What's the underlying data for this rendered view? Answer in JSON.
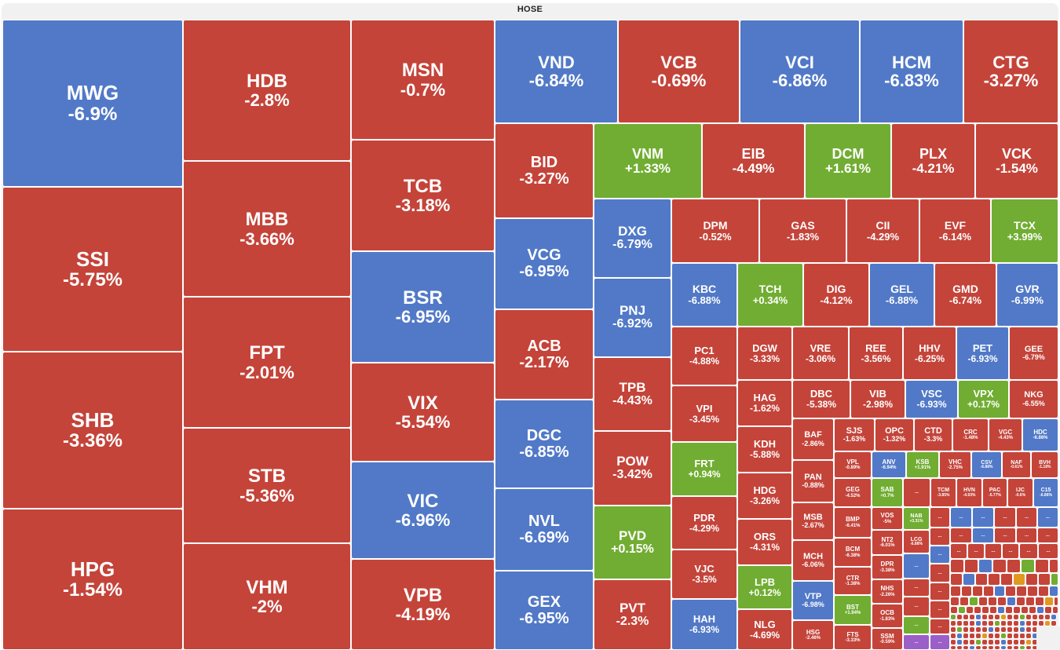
{
  "title": "HOSE",
  "colors": {
    "down": "#c4443a",
    "floor": "#5179c7",
    "up": "#71ad32",
    "ref": "#e09a20",
    "ceiling": "#9b5fc8"
  },
  "chart_data": {
    "type": "treemap",
    "title": "HOSE",
    "metric": "price change %",
    "cells": [
      {
        "ticker": "MWG",
        "change": "-6.9%",
        "status": "floor"
      },
      {
        "ticker": "SSI",
        "change": "-5.75%",
        "status": "down"
      },
      {
        "ticker": "SHB",
        "change": "-3.36%",
        "status": "down"
      },
      {
        "ticker": "HPG",
        "change": "-1.54%",
        "status": "down"
      },
      {
        "ticker": "HDB",
        "change": "-2.8%",
        "status": "down"
      },
      {
        "ticker": "MBB",
        "change": "-3.66%",
        "status": "down"
      },
      {
        "ticker": "FPT",
        "change": "-2.01%",
        "status": "down"
      },
      {
        "ticker": "STB",
        "change": "-5.36%",
        "status": "down"
      },
      {
        "ticker": "VHM",
        "change": "-2%",
        "status": "down"
      },
      {
        "ticker": "MSN",
        "change": "-0.7%",
        "status": "down"
      },
      {
        "ticker": "TCB",
        "change": "-3.18%",
        "status": "down"
      },
      {
        "ticker": "BSR",
        "change": "-6.95%",
        "status": "floor"
      },
      {
        "ticker": "VIX",
        "change": "-5.54%",
        "status": "down"
      },
      {
        "ticker": "VIC",
        "change": "-6.96%",
        "status": "floor"
      },
      {
        "ticker": "VPB",
        "change": "-4.19%",
        "status": "down"
      },
      {
        "ticker": "VND",
        "change": "-6.84%",
        "status": "floor"
      },
      {
        "ticker": "VCB",
        "change": "-0.69%",
        "status": "down"
      },
      {
        "ticker": "VCI",
        "change": "-6.86%",
        "status": "floor"
      },
      {
        "ticker": "HCM",
        "change": "-6.83%",
        "status": "floor"
      },
      {
        "ticker": "CTG",
        "change": "-3.27%",
        "status": "down"
      },
      {
        "ticker": "BID",
        "change": "-3.27%",
        "status": "down"
      },
      {
        "ticker": "VCG",
        "change": "-6.95%",
        "status": "floor"
      },
      {
        "ticker": "ACB",
        "change": "-2.17%",
        "status": "down"
      },
      {
        "ticker": "DGC",
        "change": "-6.85%",
        "status": "floor"
      },
      {
        "ticker": "NVL",
        "change": "-6.69%",
        "status": "floor"
      },
      {
        "ticker": "GEX",
        "change": "-6.95%",
        "status": "floor"
      },
      {
        "ticker": "VNM",
        "change": "+1.33%",
        "status": "up"
      },
      {
        "ticker": "EIB",
        "change": "-4.49%",
        "status": "down"
      },
      {
        "ticker": "DCM",
        "change": "+1.61%",
        "status": "up"
      },
      {
        "ticker": "PLX",
        "change": "-4.21%",
        "status": "down"
      },
      {
        "ticker": "VCK",
        "change": "-1.54%",
        "status": "down"
      },
      {
        "ticker": "DXG",
        "change": "-6.79%",
        "status": "floor"
      },
      {
        "ticker": "PNJ",
        "change": "-6.92%",
        "status": "floor"
      },
      {
        "ticker": "TPB",
        "change": "-4.43%",
        "status": "down"
      },
      {
        "ticker": "POW",
        "change": "-3.42%",
        "status": "down"
      },
      {
        "ticker": "PVD",
        "change": "+0.15%",
        "status": "up"
      },
      {
        "ticker": "PVT",
        "change": "-2.3%",
        "status": "down"
      },
      {
        "ticker": "DPM",
        "change": "-0.52%",
        "status": "down"
      },
      {
        "ticker": "GAS",
        "change": "-1.83%",
        "status": "down"
      },
      {
        "ticker": "CII",
        "change": "-4.29%",
        "status": "down"
      },
      {
        "ticker": "EVF",
        "change": "-6.14%",
        "status": "down"
      },
      {
        "ticker": "TCX",
        "change": "+3.99%",
        "status": "up"
      },
      {
        "ticker": "KBC",
        "change": "-6.88%",
        "status": "floor"
      },
      {
        "ticker": "TCH",
        "change": "+0.34%",
        "status": "up"
      },
      {
        "ticker": "DIG",
        "change": "-4.12%",
        "status": "down"
      },
      {
        "ticker": "GEL",
        "change": "-6.88%",
        "status": "floor"
      },
      {
        "ticker": "GMD",
        "change": "-6.74%",
        "status": "down"
      },
      {
        "ticker": "GVR",
        "change": "-6.99%",
        "status": "floor"
      },
      {
        "ticker": "PC1",
        "change": "-4.88%",
        "status": "down"
      },
      {
        "ticker": "VPI",
        "change": "-3.45%",
        "status": "down"
      },
      {
        "ticker": "FRT",
        "change": "+0.94%",
        "status": "up"
      },
      {
        "ticker": "PDR",
        "change": "-4.29%",
        "status": "down"
      },
      {
        "ticker": "VJC",
        "change": "-3.5%",
        "status": "down"
      },
      {
        "ticker": "HAH",
        "change": "-6.93%",
        "status": "floor"
      },
      {
        "ticker": "DGW",
        "change": "-3.33%",
        "status": "down"
      },
      {
        "ticker": "VRE",
        "change": "-3.06%",
        "status": "down"
      },
      {
        "ticker": "REE",
        "change": "-3.56%",
        "status": "down"
      },
      {
        "ticker": "HHV",
        "change": "-6.25%",
        "status": "down"
      },
      {
        "ticker": "PET",
        "change": "-6.93%",
        "status": "floor"
      },
      {
        "ticker": "GEE",
        "change": "-6.79%",
        "status": "down"
      },
      {
        "ticker": "HAG",
        "change": "-1.62%",
        "status": "down"
      },
      {
        "ticker": "KDH",
        "change": "-5.88%",
        "status": "down"
      },
      {
        "ticker": "HDG",
        "change": "-3.26%",
        "status": "down"
      },
      {
        "ticker": "ORS",
        "change": "-4.31%",
        "status": "down"
      },
      {
        "ticker": "LPB",
        "change": "+0.12%",
        "status": "up"
      },
      {
        "ticker": "NLG",
        "change": "-4.69%",
        "status": "down"
      },
      {
        "ticker": "DBC",
        "change": "-5.38%",
        "status": "down"
      },
      {
        "ticker": "VIB",
        "change": "-2.98%",
        "status": "down"
      },
      {
        "ticker": "VSC",
        "change": "-6.93%",
        "status": "floor"
      },
      {
        "ticker": "VPX",
        "change": "+0.17%",
        "status": "up"
      },
      {
        "ticker": "NKG",
        "change": "-6.55%",
        "status": "down"
      },
      {
        "ticker": "BAF",
        "change": "-2.86%",
        "status": "down"
      },
      {
        "ticker": "PAN",
        "change": "-0.88%",
        "status": "down"
      },
      {
        "ticker": "MSB",
        "change": "-2.67%",
        "status": "down"
      },
      {
        "ticker": "MCH",
        "change": "-6.06%",
        "status": "down"
      },
      {
        "ticker": "VTP",
        "change": "-6.98%",
        "status": "floor"
      },
      {
        "ticker": "HSG",
        "change": "-2.46%",
        "status": "down"
      },
      {
        "ticker": "SJS",
        "change": "-1.63%",
        "status": "down"
      },
      {
        "ticker": "OPC",
        "change": "-1.32%",
        "status": "down"
      },
      {
        "ticker": "CTD",
        "change": "-3.3%",
        "status": "down"
      },
      {
        "ticker": "CRC",
        "change": "-1.48%",
        "status": "down"
      },
      {
        "ticker": "VGC",
        "change": "-4.43%",
        "status": "down"
      },
      {
        "ticker": "HDC",
        "change": "-6.86%",
        "status": "floor"
      },
      {
        "ticker": "VPL",
        "change": "-0.89%",
        "status": "down"
      },
      {
        "ticker": "ANV",
        "change": "-6.94%",
        "status": "floor"
      },
      {
        "ticker": "KSB",
        "change": "+1.91%",
        "status": "up"
      },
      {
        "ticker": "VHC",
        "change": "-2.75%",
        "status": "down"
      },
      {
        "ticker": "CSV",
        "change": "-6.88%",
        "status": "floor"
      },
      {
        "ticker": "NAF",
        "change": "-0.61%",
        "status": "down"
      },
      {
        "ticker": "BVH",
        "change": "-1.18%",
        "status": "down"
      },
      {
        "ticker": "GEG",
        "change": "-4.52%",
        "status": "down"
      },
      {
        "ticker": "SAB",
        "change": "+0.7%",
        "status": "up"
      },
      {
        "ticker": "TCM",
        "change": "-3.85%",
        "status": "down"
      },
      {
        "ticker": "HVN",
        "change": "-4.93%",
        "status": "down"
      },
      {
        "ticker": "PAC",
        "change": "-5.77%",
        "status": "down"
      },
      {
        "ticker": "IJC",
        "change": "-0.6%",
        "status": "down"
      },
      {
        "ticker": "C15",
        "change": "-6.86%",
        "status": "floor"
      },
      {
        "ticker": "BMP",
        "change": "-6.41%",
        "status": "down"
      },
      {
        "ticker": "VOS",
        "change": "-5%",
        "status": "down"
      },
      {
        "ticker": "NAB",
        "change": "+3.31%",
        "status": "up"
      },
      {
        "ticker": "BCM",
        "change": "-6.38%",
        "status": "down"
      },
      {
        "ticker": "NT2",
        "change": "-6.01%",
        "status": "down"
      },
      {
        "ticker": "LCG",
        "change": "-6.88%",
        "status": "down"
      },
      {
        "ticker": "DPR",
        "change": "-3.38%",
        "status": "down"
      },
      {
        "ticker": "CTR",
        "change": "-1.38%",
        "status": "down"
      },
      {
        "ticker": "NHS",
        "change": "-2.26%",
        "status": "down"
      },
      {
        "ticker": "BST",
        "change": "+1.94%",
        "status": "up"
      },
      {
        "ticker": "OCB",
        "change": "-1.83%",
        "status": "down"
      },
      {
        "ticker": "FTS",
        "change": "-3.33%",
        "status": "down"
      },
      {
        "ticker": "SSM",
        "change": "-0.59%",
        "status": "down"
      }
    ]
  },
  "more_label": "..."
}
